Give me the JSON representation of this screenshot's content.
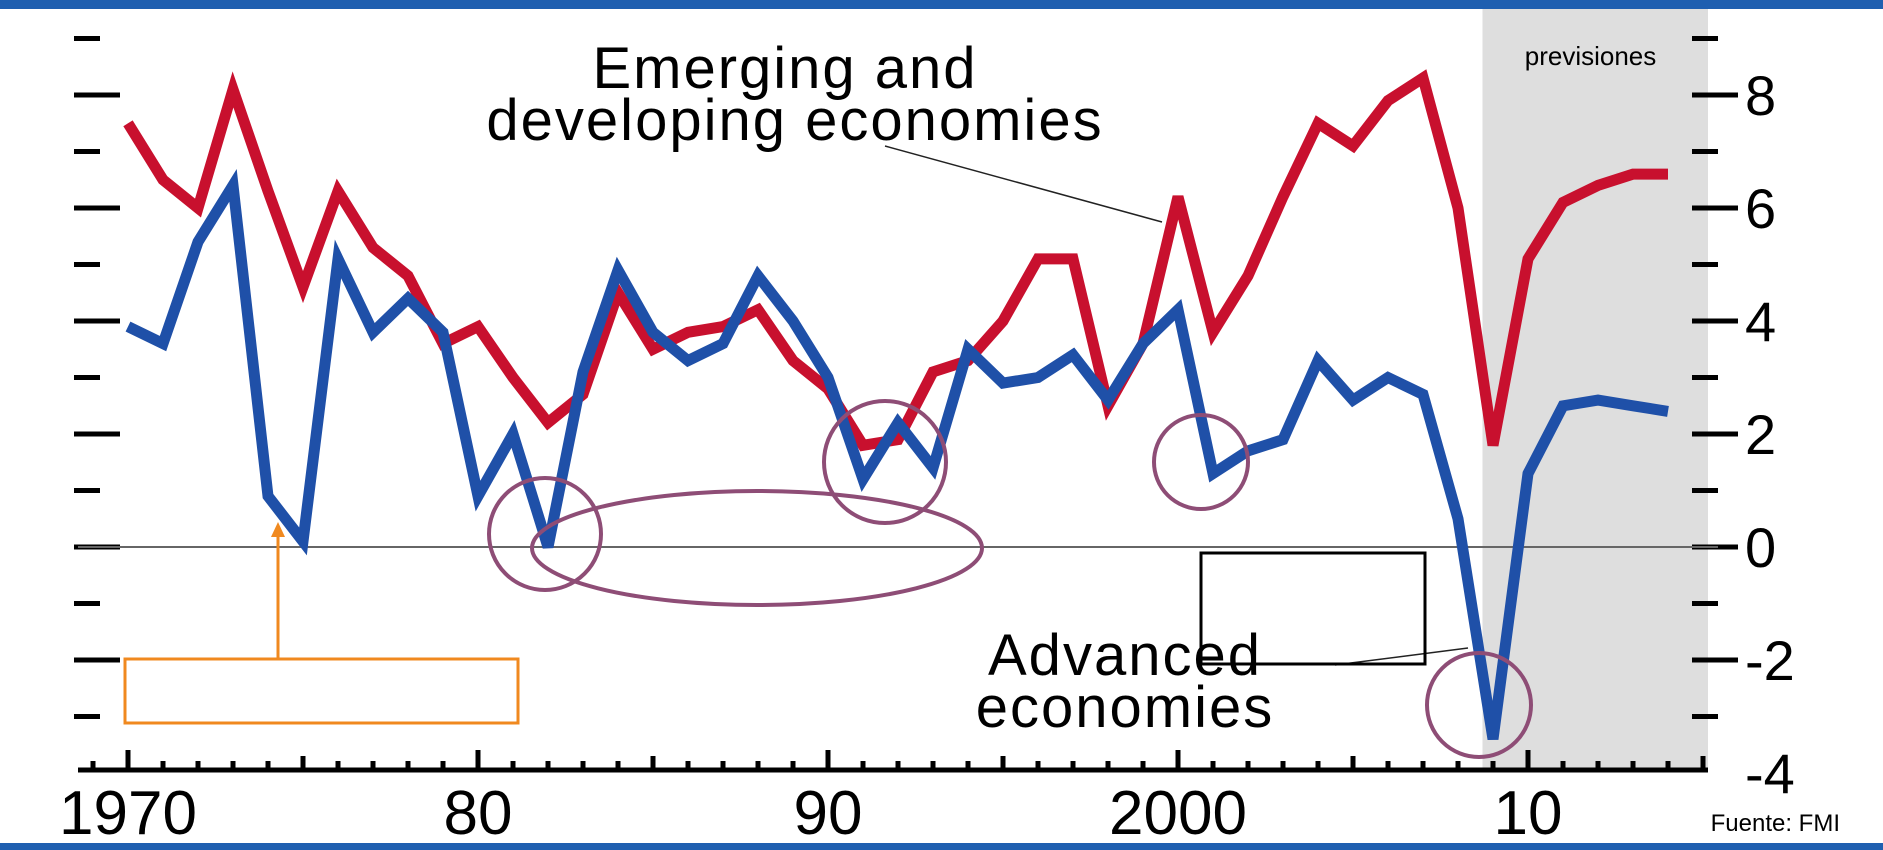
{
  "chart_data": {
    "type": "line",
    "forecast_label": "previsiones",
    "source": "Fuente: FMI",
    "x_ticks": [
      "1970",
      "80",
      "90",
      "2000",
      "10"
    ],
    "y_ticks": [
      "8",
      "6",
      "4",
      "2",
      "0",
      "-2",
      "-4"
    ],
    "ylim": [
      -4,
      9
    ],
    "xlim": [
      1969,
      2015
    ],
    "forecast_start": 2008.7,
    "zero_line": true,
    "series": [
      {
        "name": "Emerging and developing economies",
        "color": "#c8102e",
        "x": [
          1970,
          1971,
          1972,
          1973,
          1974,
          1975,
          1976,
          1977,
          1978,
          1979,
          1980,
          1981,
          1982,
          1983,
          1984,
          1985,
          1986,
          1987,
          1988,
          1989,
          1990,
          1991,
          1992,
          1993,
          1994,
          1995,
          1996,
          1997,
          1998,
          1999,
          2000,
          2001,
          2002,
          2003,
          2004,
          2005,
          2006,
          2007,
          2008,
          2009,
          2010,
          2011,
          2012,
          2013,
          2014
        ],
        "values": [
          7.5,
          6.5,
          6.0,
          8.1,
          6.3,
          4.6,
          6.3,
          5.3,
          4.8,
          3.6,
          3.9,
          3.0,
          2.2,
          2.7,
          4.5,
          3.5,
          3.8,
          3.9,
          4.2,
          3.3,
          2.8,
          1.8,
          1.9,
          3.1,
          3.3,
          4.0,
          5.1,
          5.1,
          2.5,
          3.6,
          6.2,
          3.8,
          4.8,
          6.2,
          7.5,
          7.1,
          7.9,
          8.3,
          6.0,
          1.8,
          5.1,
          6.1,
          6.4,
          6.6,
          6.6
        ]
      },
      {
        "name": "Advanced economies",
        "color": "#1f50a8",
        "x": [
          1970,
          1971,
          1972,
          1973,
          1974,
          1975,
          1976,
          1977,
          1978,
          1979,
          1980,
          1981,
          1982,
          1983,
          1984,
          1985,
          1986,
          1987,
          1988,
          1989,
          1990,
          1991,
          1992,
          1993,
          1994,
          1995,
          1996,
          1997,
          1998,
          1999,
          2000,
          2001,
          2002,
          2003,
          2004,
          2005,
          2006,
          2007,
          2008,
          2009,
          2010,
          2011,
          2012,
          2013,
          2014
        ],
        "values": [
          3.9,
          3.6,
          5.4,
          6.4,
          0.9,
          0.1,
          5.1,
          3.8,
          4.4,
          3.8,
          0.9,
          2.0,
          0.0,
          3.1,
          4.9,
          3.8,
          3.3,
          3.6,
          4.8,
          4.0,
          3.0,
          1.2,
          2.2,
          1.4,
          3.5,
          2.9,
          3.0,
          3.4,
          2.6,
          3.6,
          4.2,
          1.3,
          1.7,
          1.9,
          3.3,
          2.6,
          3.0,
          2.7,
          0.5,
          -3.4,
          1.3,
          2.5,
          2.6,
          2.5,
          2.4
        ]
      }
    ]
  }
}
